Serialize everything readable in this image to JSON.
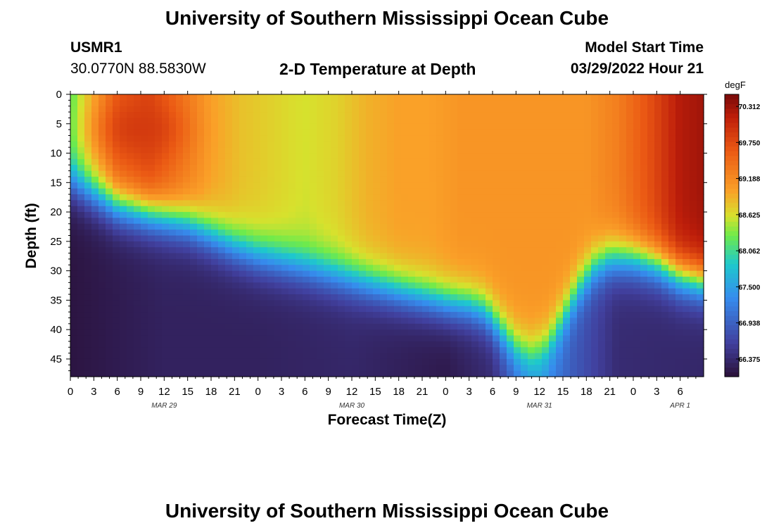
{
  "header": {
    "title": "University of Southern Mississippi Ocean Cube",
    "station_id": "USMR1",
    "station_coords": "30.0770N  88.5830W",
    "plot_title": "2-D Temperature at Depth",
    "model_label": "Model Start Time",
    "model_time": "03/29/2022 Hour 21"
  },
  "footer": {
    "title": "University of Southern Mississippi Ocean Cube"
  },
  "chart_data": {
    "type": "heatmap",
    "title": "2-D Temperature at Depth",
    "xlabel": "Forecast Time(Z)",
    "ylabel": "Depth (ft)",
    "xlim": [
      0,
      81
    ],
    "ylim": [
      48,
      0
    ],
    "x_ticks": [
      {
        "t": 0,
        "label": "0"
      },
      {
        "t": 3,
        "label": "3"
      },
      {
        "t": 6,
        "label": "6"
      },
      {
        "t": 9,
        "label": "9"
      },
      {
        "t": 12,
        "label": "12"
      },
      {
        "t": 15,
        "label": "15"
      },
      {
        "t": 18,
        "label": "18"
      },
      {
        "t": 21,
        "label": "21"
      },
      {
        "t": 24,
        "label": "0"
      },
      {
        "t": 27,
        "label": "3"
      },
      {
        "t": 30,
        "label": "6"
      },
      {
        "t": 33,
        "label": "9"
      },
      {
        "t": 36,
        "label": "12"
      },
      {
        "t": 39,
        "label": "15"
      },
      {
        "t": 42,
        "label": "18"
      },
      {
        "t": 45,
        "label": "21"
      },
      {
        "t": 48,
        "label": "0"
      },
      {
        "t": 51,
        "label": "3"
      },
      {
        "t": 54,
        "label": "6"
      },
      {
        "t": 57,
        "label": "9"
      },
      {
        "t": 60,
        "label": "12"
      },
      {
        "t": 63,
        "label": "15"
      },
      {
        "t": 66,
        "label": "18"
      },
      {
        "t": 69,
        "label": "21"
      },
      {
        "t": 72,
        "label": "0"
      },
      {
        "t": 75,
        "label": "3"
      },
      {
        "t": 78,
        "label": "6"
      }
    ],
    "date_labels": [
      {
        "t": 12,
        "label": "MAR 29"
      },
      {
        "t": 36,
        "label": "MAR 30"
      },
      {
        "t": 60,
        "label": "MAR 31"
      },
      {
        "t": 78,
        "label": "APR 1"
      }
    ],
    "y_ticks": [
      0,
      5,
      10,
      15,
      20,
      25,
      30,
      35,
      40,
      45
    ],
    "colorbar": {
      "unit": "degF",
      "min": 66.1,
      "max": 70.5,
      "labels": [
        "70.312",
        "69.750",
        "69.188",
        "68.625",
        "68.062",
        "67.500",
        "66.938",
        "66.375"
      ]
    },
    "thermocline_depth_ft": [
      {
        "t": 0,
        "d": 15
      },
      {
        "t": 3,
        "d": 17
      },
      {
        "t": 6,
        "d": 19
      },
      {
        "t": 9,
        "d": 20
      },
      {
        "t": 12,
        "d": 21
      },
      {
        "t": 15,
        "d": 22
      },
      {
        "t": 18,
        "d": 24
      },
      {
        "t": 21,
        "d": 26
      },
      {
        "t": 24,
        "d": 27.5
      },
      {
        "t": 27,
        "d": 28.5
      },
      {
        "t": 30,
        "d": 29.5
      },
      {
        "t": 33,
        "d": 30.5
      },
      {
        "t": 36,
        "d": 31.5
      },
      {
        "t": 39,
        "d": 32.5
      },
      {
        "t": 42,
        "d": 33.5
      },
      {
        "t": 45,
        "d": 34.5
      },
      {
        "t": 48,
        "d": 35.5
      },
      {
        "t": 51,
        "d": 36
      },
      {
        "t": 53,
        "d": 37
      },
      {
        "t": 55,
        "d": 40
      },
      {
        "t": 57,
        "d": 43
      },
      {
        "t": 59,
        "d": 44
      },
      {
        "t": 61,
        "d": 42.5
      },
      {
        "t": 63,
        "d": 38
      },
      {
        "t": 65,
        "d": 33
      },
      {
        "t": 67,
        "d": 29.5
      },
      {
        "t": 69,
        "d": 28
      },
      {
        "t": 72,
        "d": 28
      },
      {
        "t": 75,
        "d": 29
      },
      {
        "t": 78,
        "d": 31
      },
      {
        "t": 81,
        "d": 32
      }
    ],
    "surface_temp_degF": [
      {
        "t": 0,
        "v": 68.2
      },
      {
        "t": 2,
        "v": 68.7
      },
      {
        "t": 6,
        "v": 69.6
      },
      {
        "t": 10,
        "v": 69.8
      },
      {
        "t": 14,
        "v": 69.4
      },
      {
        "t": 18,
        "v": 69.0
      },
      {
        "t": 22,
        "v": 68.8
      },
      {
        "t": 26,
        "v": 68.7
      },
      {
        "t": 30,
        "v": 68.6
      },
      {
        "t": 34,
        "v": 68.7
      },
      {
        "t": 38,
        "v": 68.9
      },
      {
        "t": 42,
        "v": 69.0
      },
      {
        "t": 46,
        "v": 69.0
      },
      {
        "t": 50,
        "v": 69.1
      },
      {
        "t": 54,
        "v": 69.1
      },
      {
        "t": 58,
        "v": 69.1
      },
      {
        "t": 62,
        "v": 69.1
      },
      {
        "t": 66,
        "v": 69.1
      },
      {
        "t": 70,
        "v": 69.3
      },
      {
        "t": 74,
        "v": 69.7
      },
      {
        "t": 78,
        "v": 70.2
      },
      {
        "t": 81,
        "v": 70.3
      }
    ],
    "bottom_temp_degF": [
      {
        "t": 0,
        "v": 66.15
      },
      {
        "t": 12,
        "v": 66.3
      },
      {
        "t": 24,
        "v": 66.3
      },
      {
        "t": 36,
        "v": 66.35
      },
      {
        "t": 48,
        "v": 66.2
      },
      {
        "t": 54,
        "v": 66.4
      },
      {
        "t": 58,
        "v": 67.2
      },
      {
        "t": 60,
        "v": 67.4
      },
      {
        "t": 64,
        "v": 66.9
      },
      {
        "t": 70,
        "v": 66.4
      },
      {
        "t": 81,
        "v": 66.35
      }
    ],
    "warm_core": {
      "t": 9,
      "d": 6,
      "v": 69.9
    }
  }
}
